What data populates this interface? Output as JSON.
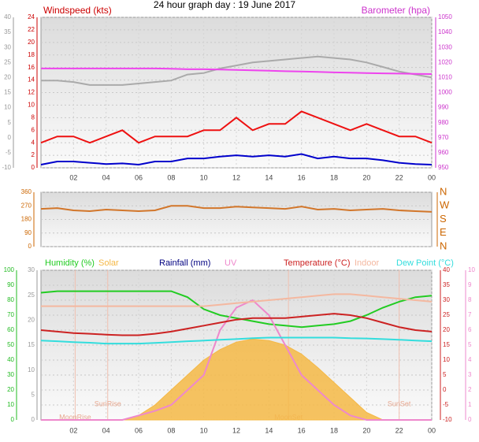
{
  "chart_data": [
    {
      "type": "line",
      "title": "24 hour graph day : 19 June 2017",
      "ylabel": "Windspeed (kts)",
      "y2label": "Barometer (hpa)",
      "x": [
        0,
        1,
        2,
        3,
        4,
        5,
        6,
        7,
        8,
        9,
        10,
        11,
        12,
        13,
        14,
        15,
        16,
        17,
        18,
        19,
        20,
        21,
        22,
        23,
        24
      ],
      "xlim": [
        0,
        24
      ],
      "xticks": [
        {
          "value": 2,
          "label": "02"
        },
        {
          "value": 4,
          "label": "04"
        },
        {
          "value": 6,
          "label": "06"
        },
        {
          "value": 8,
          "label": "08"
        },
        10,
        12,
        14,
        16,
        18,
        20,
        22,
        {
          "value": 24,
          "label": "00"
        }
      ],
      "ylim": [
        0,
        24
      ],
      "yticks": [
        0,
        2,
        4,
        6,
        8,
        10,
        12,
        14,
        16,
        18,
        20,
        22,
        24
      ],
      "y2lim": [
        950,
        1050
      ],
      "y2ticks": [
        950,
        960,
        970,
        980,
        990,
        1000,
        1010,
        1020,
        1030,
        1040,
        1050
      ],
      "y3lim": [
        -10,
        40
      ],
      "y3ticks": [
        -10,
        -5,
        0,
        5,
        10,
        15,
        20,
        25,
        30,
        35,
        40
      ],
      "series": [
        {
          "color": "#aaaaaa",
          "axis": "y3",
          "values": [
            19,
            19,
            18.5,
            17.5,
            17.5,
            17.5,
            18,
            18.5,
            19,
            21,
            21.5,
            23,
            24,
            25,
            25.5,
            26,
            26.5,
            27,
            26.5,
            26,
            25,
            23.5,
            22,
            21,
            20
          ]
        },
        {
          "color": "#ee44ee",
          "axis": "y2",
          "values": [
            1016,
            1016,
            1016,
            1016,
            1016,
            1016,
            1016,
            1016,
            1015.8,
            1015.5,
            1015.5,
            1015.3,
            1015,
            1014.8,
            1014.5,
            1014.2,
            1014,
            1013.7,
            1013.4,
            1013.2,
            1013,
            1012.8,
            1012.6,
            1012.4,
            1012.3
          ]
        },
        {
          "color": "#ee1111",
          "values": [
            4,
            5,
            5,
            4,
            5,
            6,
            4,
            5,
            5,
            5,
            6,
            6,
            8,
            6,
            7,
            7,
            9,
            8,
            7,
            6,
            7,
            6,
            5,
            5,
            4
          ]
        },
        {
          "color": "#0000cc",
          "values": [
            0.5,
            1,
            1,
            0.8,
            0.6,
            0.7,
            0.5,
            1,
            1,
            1.5,
            1.5,
            1.8,
            2,
            1.8,
            2,
            1.8,
            2.2,
            1.5,
            1.8,
            1.5,
            1.5,
            1.2,
            0.8,
            0.6,
            0.5
          ]
        }
      ]
    },
    {
      "type": "line",
      "x": [
        0,
        1,
        2,
        3,
        4,
        5,
        6,
        7,
        8,
        9,
        10,
        11,
        12,
        13,
        14,
        15,
        16,
        17,
        18,
        19,
        20,
        21,
        22,
        23,
        24
      ],
      "xlim": [
        0,
        24
      ],
      "ylim": [
        0,
        360
      ],
      "yticks": [
        0,
        90,
        180,
        270,
        360
      ],
      "y2ticks": [
        {
          "value": 0,
          "label": "N"
        },
        {
          "value": 90,
          "label": "E"
        },
        {
          "value": 180,
          "label": "S"
        },
        {
          "value": 270,
          "label": "W"
        },
        {
          "value": 360,
          "label": "N"
        }
      ],
      "series": [
        {
          "color": "#d2762a",
          "values": [
            250,
            255,
            240,
            235,
            245,
            240,
            235,
            240,
            270,
            270,
            255,
            255,
            265,
            260,
            255,
            250,
            265,
            245,
            250,
            240,
            245,
            250,
            240,
            235,
            230
          ]
        }
      ]
    },
    {
      "type": "line",
      "y3label": "Rainfall (mm)",
      "x": [
        0,
        1,
        2,
        3,
        4,
        5,
        6,
        7,
        8,
        9,
        10,
        11,
        12,
        13,
        14,
        15,
        16,
        17,
        18,
        19,
        20,
        21,
        22,
        23,
        24
      ],
      "xlim": [
        0,
        24
      ],
      "xticks": [
        {
          "value": 2,
          "label": "02"
        },
        {
          "value": 4,
          "label": "04"
        },
        {
          "value": 6,
          "label": "06"
        },
        {
          "value": 8,
          "label": "08"
        },
        10,
        12,
        14,
        16,
        18,
        20,
        22,
        {
          "value": 24,
          "label": "00"
        }
      ],
      "ylim": [
        0,
        100
      ],
      "yticks": [
        0,
        10,
        20,
        30,
        40,
        50,
        60,
        70,
        80,
        90,
        100
      ],
      "y2lim": [
        -10,
        40
      ],
      "y2ticks": [
        -10,
        -5,
        0,
        5,
        10,
        15,
        20,
        25,
        30,
        35,
        40
      ],
      "y3lim": [
        0,
        30
      ],
      "y3ticks": [
        0,
        5,
        10,
        15,
        20,
        25,
        30
      ],
      "y4lim": [
        0,
        10
      ],
      "y4ticks": [
        0,
        1,
        2,
        3,
        4,
        5,
        6,
        7,
        8,
        9,
        10
      ],
      "annotations": [
        {
          "text": "MoonRise",
          "x": 2.1
        },
        {
          "text": "SunRise",
          "x": 4.1
        },
        {
          "text": "MoonSet",
          "x": 15.2
        },
        {
          "text": "SunSet",
          "x": 22
        }
      ],
      "series": [
        {
          "name": "Solar",
          "color": "#f5b845",
          "area": true,
          "values": [
            0,
            0,
            0,
            0,
            0,
            0,
            3,
            10,
            20,
            30,
            40,
            47,
            52,
            54,
            53,
            50,
            44,
            35,
            25,
            15,
            5,
            0,
            0,
            0,
            0
          ]
        },
        {
          "name": "Humidity (%)",
          "color": "#22cc22",
          "values": [
            85,
            86,
            86,
            86,
            86,
            86,
            86,
            86,
            86,
            82,
            74,
            70,
            68,
            66,
            64,
            63,
            62,
            63,
            64,
            66,
            70,
            75,
            79,
            82,
            83
          ]
        },
        {
          "name": "UV",
          "color": "#ee88cc",
          "axis": "y4",
          "values": [
            0,
            0,
            0,
            0,
            0,
            0,
            0.3,
            0.6,
            1,
            2,
            3,
            6,
            7.5,
            8,
            7,
            5,
            3,
            2,
            1,
            0.3,
            0,
            0,
            0,
            0,
            0
          ]
        },
        {
          "name": "Temperature (°C)",
          "color": "#cc2222",
          "axis": "y2",
          "values": [
            20,
            19.5,
            19,
            18.8,
            18.5,
            18.3,
            18.3,
            18.8,
            19.5,
            20.5,
            21.5,
            22.5,
            23.5,
            24,
            24,
            24,
            24.5,
            25,
            25.5,
            25,
            24,
            22.5,
            21,
            20,
            19.5
          ]
        },
        {
          "name": "Indoor",
          "color": "#f4b8a0",
          "axis": "y2",
          "values": [
            28,
            28,
            28,
            28,
            28,
            28,
            28,
            28,
            28,
            28,
            28,
            28.5,
            29,
            29.5,
            30,
            30.5,
            31,
            31.5,
            32,
            32,
            31.5,
            31,
            30.5,
            30,
            29.5
          ]
        },
        {
          "name": "Dew Point (°C)",
          "color": "#33dddd",
          "axis": "y2",
          "values": [
            16.5,
            16.3,
            16,
            15.8,
            15.5,
            15.5,
            15.5,
            15.7,
            16,
            16.3,
            16.5,
            16.8,
            17,
            17.3,
            17.5,
            17.5,
            17.5,
            17.5,
            17.5,
            17.3,
            17.2,
            17,
            16.8,
            16.5,
            16.3
          ]
        }
      ]
    }
  ]
}
